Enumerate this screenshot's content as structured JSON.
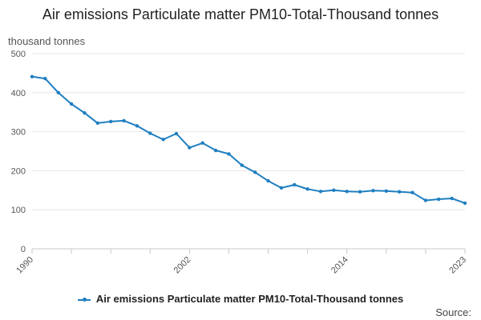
{
  "chart_data": {
    "type": "line",
    "title": "Air emissions Particulate matter PM10-Total-Thousand tonnes",
    "ylabel": "thousand tonnes",
    "xlabel": "",
    "ylim": [
      0,
      500
    ],
    "y_ticks": [
      0,
      100,
      200,
      300,
      400,
      500
    ],
    "x_range": [
      1990,
      2023
    ],
    "x_tick_labels": [
      1990,
      2002,
      2014,
      2023
    ],
    "x_minor_ticks": [
      1990,
      1993,
      1996,
      1999,
      2002,
      2005,
      2008,
      2011,
      2014,
      2017,
      2020,
      2023
    ],
    "series": [
      {
        "name": "Air emissions Particulate matter PM10-Total-Thousand tonnes",
        "color": "#1f7fc1",
        "x": [
          1990,
          1991,
          1992,
          1993,
          1994,
          1995,
          1996,
          1997,
          1998,
          1999,
          2000,
          2001,
          2002,
          2003,
          2004,
          2005,
          2006,
          2007,
          2008,
          2009,
          2010,
          2011,
          2012,
          2013,
          2014,
          2015,
          2016,
          2017,
          2018,
          2019,
          2020,
          2021,
          2022,
          2023
        ],
        "values": [
          441,
          436,
          400,
          371,
          348,
          322,
          326,
          328,
          315,
          296,
          280,
          295,
          259,
          271,
          252,
          243,
          214,
          196,
          174,
          156,
          164,
          153,
          147,
          150,
          147,
          146,
          149,
          148,
          146,
          144,
          124,
          127,
          129,
          117
        ]
      }
    ],
    "legend_position": "bottom-center",
    "source_label": "Source:"
  }
}
